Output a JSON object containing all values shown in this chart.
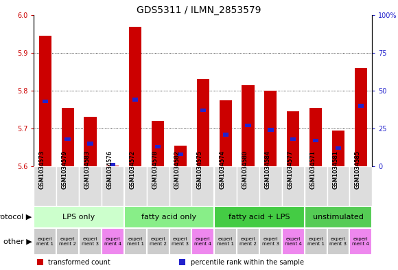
{
  "title": "GDS5311 / ILMN_2853579",
  "samples": [
    "GSM1034573",
    "GSM1034579",
    "GSM1034583",
    "GSM1034576",
    "GSM1034572",
    "GSM1034578",
    "GSM1034582",
    "GSM1034575",
    "GSM1034574",
    "GSM1034580",
    "GSM1034584",
    "GSM1034577",
    "GSM1034571",
    "GSM1034581",
    "GSM1034585"
  ],
  "red_values": [
    5.945,
    5.755,
    5.73,
    5.601,
    5.97,
    5.72,
    5.655,
    5.83,
    5.775,
    5.815,
    5.8,
    5.745,
    5.755,
    5.695,
    5.86
  ],
  "blue_values": [
    43,
    18,
    15,
    1,
    44,
    13,
    8,
    37,
    21,
    27,
    24,
    18,
    17,
    12,
    40
  ],
  "ymin": 5.6,
  "ymax": 6.0,
  "y2min": 0,
  "y2max": 100,
  "yticks": [
    5.6,
    5.7,
    5.8,
    5.9,
    6.0
  ],
  "y2ticks": [
    0,
    25,
    50,
    75,
    100
  ],
  "y2ticklabels": [
    "0",
    "25",
    "50",
    "75",
    "100%"
  ],
  "bar_color_red": "#cc0000",
  "bar_color_blue": "#2222cc",
  "protocol_groups": [
    {
      "label": "LPS only",
      "start": 0,
      "end": 4,
      "color": "#ccffcc"
    },
    {
      "label": "fatty acid only",
      "start": 4,
      "end": 8,
      "color": "#88ee88"
    },
    {
      "label": "fatty acid + LPS",
      "start": 8,
      "end": 12,
      "color": "#44cc44"
    },
    {
      "label": "unstimulated",
      "start": 12,
      "end": 15,
      "color": "#55cc55"
    }
  ],
  "other_colors": [
    "#cccccc",
    "#cccccc",
    "#cccccc",
    "#ee88ee",
    "#cccccc",
    "#cccccc",
    "#cccccc",
    "#ee88ee",
    "#cccccc",
    "#cccccc",
    "#cccccc",
    "#ee88ee",
    "#cccccc",
    "#cccccc",
    "#ee88ee"
  ],
  "other_labels": [
    "experi\nment 1",
    "experi\nment 2",
    "experi\nment 3",
    "experi\nment 4",
    "experi\nment 1",
    "experi\nment 2",
    "experi\nment 3",
    "experi\nment 4",
    "experi\nment 1",
    "experi\nment 2",
    "experi\nment 3",
    "experi\nment 4",
    "experi\nment 1",
    "experi\nment 3",
    "experi\nment 4"
  ],
  "legend_items": [
    {
      "color": "#cc0000",
      "label": "transformed count"
    },
    {
      "color": "#2222cc",
      "label": "percentile rank within the sample"
    }
  ],
  "left_label": "protocol",
  "other_label": "other",
  "title_fontsize": 10,
  "tick_fontsize": 7,
  "label_fontsize": 8,
  "group_fontsize": 8,
  "sample_fontsize": 6,
  "other_fontsize": 5
}
